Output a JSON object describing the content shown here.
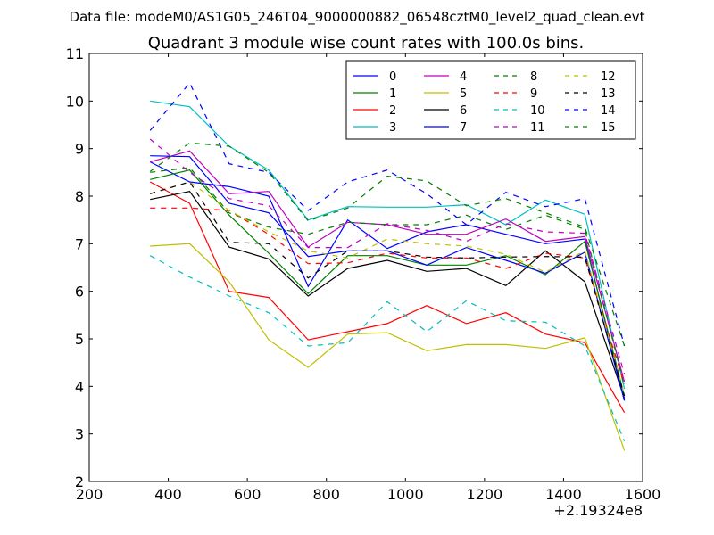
{
  "chart_data": {
    "type": "line",
    "suptitle": "Data file: modeM0/AS1G05_246T04_9000000882_06548cztM0_level2_quad_clean.evt",
    "title": "Quadrant 3 module wise count rates with 100.0s bins.",
    "xlabel": "",
    "ylabel": "",
    "x_offset_label": "+2.19324e8",
    "xlim": [
      200,
      1600
    ],
    "ylim": [
      2,
      11
    ],
    "xticks": [
      200,
      400,
      600,
      800,
      1000,
      1200,
      1400,
      1600
    ],
    "yticks": [
      2,
      3,
      4,
      5,
      6,
      7,
      8,
      9,
      10,
      11
    ],
    "grid": false,
    "legend_position": "top-right",
    "legend_columns": 4,
    "x": [
      354,
      454,
      554,
      654,
      754,
      854,
      954,
      1054,
      1154,
      1254,
      1354,
      1454,
      1554
    ],
    "series": [
      {
        "name": "0",
        "color": "#0000ff",
        "dash": "solid",
        "values": [
          8.72,
          8.3,
          8.2,
          8.0,
          6.1,
          7.5,
          6.9,
          7.25,
          7.4,
          7.2,
          7.0,
          7.1,
          3.7
        ]
      },
      {
        "name": "1",
        "color": "#008000",
        "dash": "solid",
        "values": [
          8.35,
          8.55,
          7.6,
          6.8,
          5.95,
          6.75,
          6.75,
          6.55,
          6.55,
          6.75,
          6.35,
          7.05,
          3.8
        ]
      },
      {
        "name": "2",
        "color": "#ff0000",
        "dash": "solid",
        "values": [
          8.3,
          7.85,
          6.0,
          5.87,
          4.98,
          5.15,
          5.32,
          5.7,
          5.32,
          5.55,
          5.1,
          4.92,
          3.45
        ]
      },
      {
        "name": "3",
        "color": "#00bfbf",
        "dash": "solid",
        "values": [
          10.0,
          9.88,
          9.05,
          8.55,
          7.5,
          7.78,
          7.77,
          7.77,
          7.82,
          7.4,
          7.92,
          7.62,
          3.95
        ]
      },
      {
        "name": "4",
        "color": "#bf00bf",
        "dash": "solid",
        "values": [
          8.72,
          8.95,
          8.05,
          8.1,
          6.93,
          7.45,
          7.4,
          7.2,
          7.2,
          7.52,
          7.05,
          7.15,
          4.1
        ]
      },
      {
        "name": "5",
        "color": "#bfbf00",
        "dash": "solid",
        "values": [
          6.95,
          7.0,
          6.2,
          4.98,
          4.4,
          5.1,
          5.13,
          4.75,
          4.88,
          4.88,
          4.8,
          5.02,
          2.65
        ]
      },
      {
        "name": "6",
        "color": "#000000",
        "dash": "solid",
        "values": [
          7.93,
          8.1,
          6.93,
          6.68,
          5.9,
          6.48,
          6.65,
          6.42,
          6.48,
          6.12,
          6.85,
          6.2,
          3.75
        ]
      },
      {
        "name": "7",
        "color": "#0000ff",
        "dash": "solid",
        "values": [
          8.85,
          8.83,
          7.85,
          7.65,
          6.73,
          6.85,
          6.85,
          6.55,
          6.92,
          6.65,
          6.38,
          6.82,
          3.7
        ]
      },
      {
        "name": "8",
        "color": "#008000",
        "dash": "dashed",
        "values": [
          8.5,
          8.6,
          7.65,
          7.35,
          7.2,
          7.45,
          7.4,
          7.4,
          7.6,
          7.3,
          7.6,
          7.3,
          4.0
        ]
      },
      {
        "name": "9",
        "color": "#ff0000",
        "dash": "dashed",
        "values": [
          7.75,
          7.75,
          7.7,
          7.2,
          6.58,
          6.6,
          6.8,
          6.7,
          6.7,
          6.48,
          6.8,
          6.7,
          4.05
        ]
      },
      {
        "name": "10",
        "color": "#00bfbf",
        "dash": "dashed",
        "values": [
          6.75,
          6.3,
          5.9,
          5.55,
          4.85,
          4.92,
          5.78,
          5.15,
          5.8,
          5.38,
          5.35,
          4.85,
          2.85
        ]
      },
      {
        "name": "11",
        "color": "#bf00bf",
        "dash": "dashed",
        "values": [
          9.2,
          8.5,
          7.95,
          7.8,
          6.92,
          6.92,
          7.42,
          7.28,
          7.05,
          7.42,
          7.25,
          7.22,
          4.25
        ]
      },
      {
        "name": "12",
        "color": "#bfbf00",
        "dash": "dashed",
        "values": [
          8.05,
          8.3,
          7.7,
          7.25,
          6.85,
          6.7,
          7.1,
          7.0,
          6.95,
          6.78,
          6.4,
          6.85,
          3.82
        ]
      },
      {
        "name": "13",
        "color": "#000000",
        "dash": "dashed",
        "values": [
          8.05,
          8.3,
          7.03,
          7.0,
          6.28,
          6.85,
          6.85,
          6.72,
          6.7,
          6.72,
          6.73,
          6.72,
          3.8
        ]
      },
      {
        "name": "14",
        "color": "#0000ff",
        "dash": "dashed",
        "values": [
          9.38,
          10.38,
          8.68,
          8.5,
          7.7,
          8.3,
          8.55,
          8.05,
          7.4,
          8.08,
          7.78,
          7.95,
          4.85
        ]
      },
      {
        "name": "15",
        "color": "#008000",
        "dash": "dashed",
        "values": [
          8.52,
          9.12,
          9.05,
          8.5,
          7.48,
          7.75,
          8.42,
          8.32,
          7.8,
          7.95,
          7.65,
          7.35,
          4.85
        ]
      }
    ]
  }
}
